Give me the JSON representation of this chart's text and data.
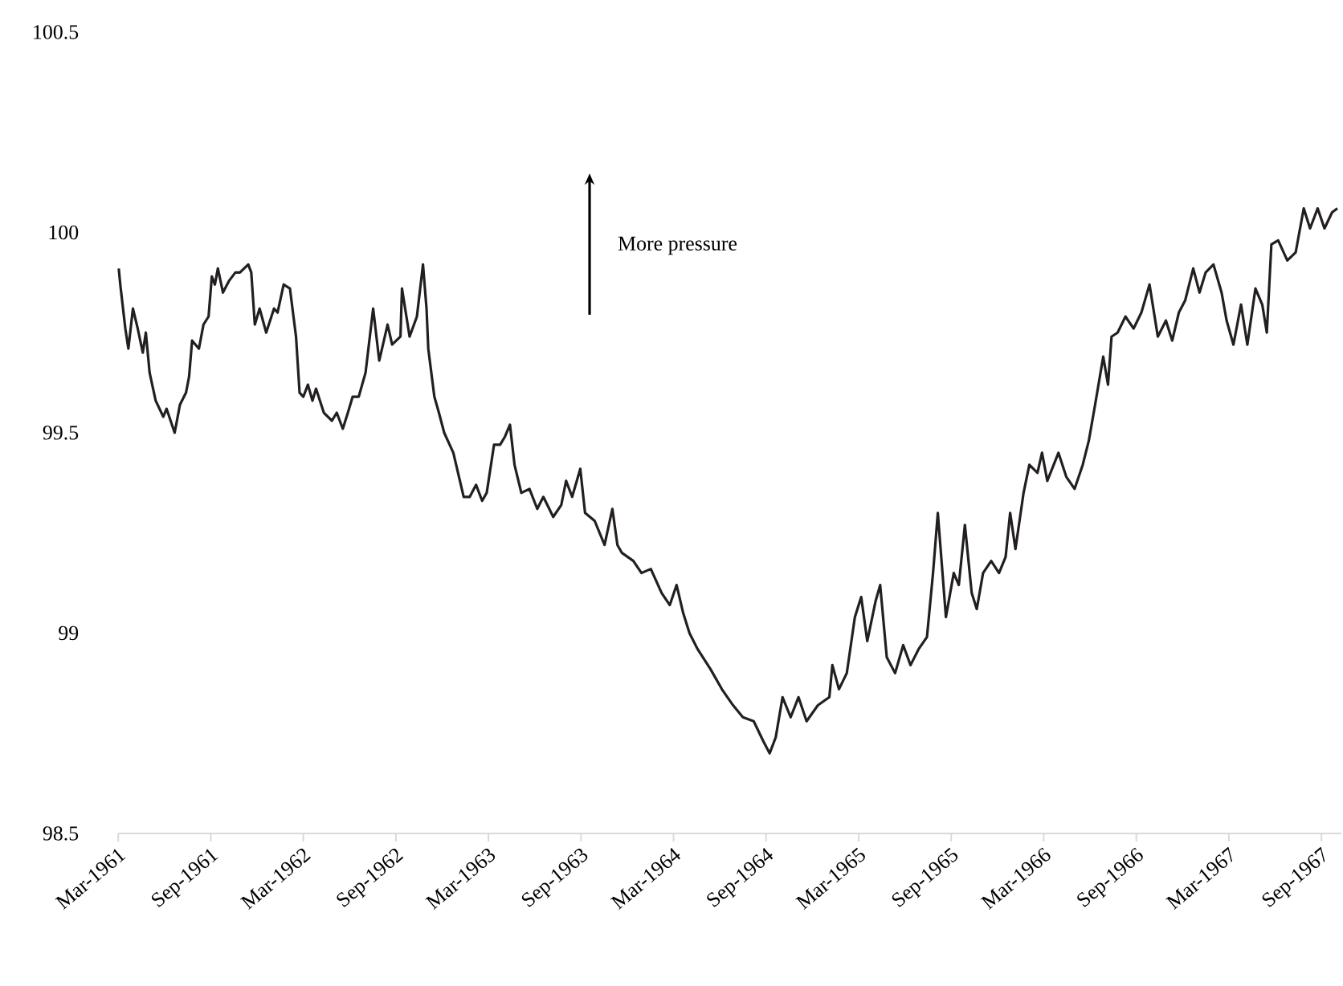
{
  "chart_data": {
    "type": "line",
    "x": [
      "1961-03-02",
      "1961-03-05",
      "1961-03-15",
      "1961-03-21",
      "1961-03-30",
      "1961-04-09",
      "1961-04-19",
      "1961-04-25",
      "1961-05-02",
      "1961-05-14",
      "1961-05-29",
      "1961-06-05",
      "1961-06-21",
      "1961-07-01",
      "1961-07-13",
      "1961-07-19",
      "1961-07-25",
      "1961-08-08",
      "1961-08-17",
      "1961-08-27",
      "1961-09-03",
      "1961-09-09",
      "1961-09-15",
      "1961-09-25",
      "1961-10-07",
      "1961-10-19",
      "1961-10-28",
      "1961-11-14",
      "1961-11-20",
      "1961-11-27",
      "1961-12-06",
      "1961-12-19",
      "1962-01-04",
      "1962-01-11",
      "1962-01-23",
      "1962-02-05",
      "1962-02-17",
      "1962-02-24",
      "1962-03-01",
      "1962-03-10",
      "1962-03-19",
      "1962-03-26",
      "1962-04-11",
      "1962-04-27",
      "1962-05-06",
      "1962-05-18",
      "1962-05-28",
      "1962-06-07",
      "1962-06-19",
      "1962-07-02",
      "1962-07-17",
      "1962-07-29",
      "1962-08-15",
      "1962-08-24",
      "1962-09-10",
      "1962-09-13",
      "1962-09-28",
      "1962-10-12",
      "1962-10-24",
      "1962-10-31",
      "1962-11-04",
      "1962-11-16",
      "1962-11-25",
      "1962-12-05",
      "1962-12-23",
      "1963-01-13",
      "1963-01-25",
      "1963-02-07",
      "1963-02-19",
      "1963-02-28",
      "1963-03-12",
      "1963-03-24",
      "1963-04-03",
      "1963-04-13",
      "1963-04-22",
      "1963-05-05",
      "1963-05-21",
      "1963-06-06",
      "1963-06-18",
      "1963-07-07",
      "1963-07-23",
      "1963-08-02",
      "1963-08-14",
      "1963-08-30",
      "1963-09-09",
      "1963-09-28",
      "1963-10-17",
      "1963-11-02",
      "1963-11-12",
      "1963-11-21",
      "1963-12-13",
      "1963-12-29",
      "1964-01-17",
      "1964-02-08",
      "1964-02-24",
      "1964-03-07",
      "1964-03-20",
      "1964-04-02",
      "1964-04-18",
      "1964-05-13",
      "1964-06-05",
      "1964-06-27",
      "1964-07-16",
      "1964-08-07",
      "1964-08-26",
      "1964-09-08",
      "1964-09-20",
      "1964-10-03",
      "1964-10-19",
      "1964-11-04",
      "1964-11-20",
      "1964-12-12",
      "1965-01-04",
      "1965-01-10",
      "1965-01-23",
      "1965-02-08",
      "1965-02-24",
      "1965-03-06",
      "1965-03-18",
      "1965-04-04",
      "1965-04-13",
      "1965-04-26",
      "1965-05-12",
      "1965-05-28",
      "1965-06-12",
      "1965-06-28",
      "1965-07-14",
      "1965-07-26",
      "1965-08-05",
      "1965-08-21",
      "1965-09-06",
      "1965-09-16",
      "1965-09-28",
      "1965-10-11",
      "1965-10-21",
      "1965-11-03",
      "1965-11-19",
      "1965-12-04",
      "1965-12-17",
      "1965-12-26",
      "1966-01-06",
      "1966-01-22",
      "1966-02-03",
      "1966-02-19",
      "1966-02-28",
      "1966-03-08",
      "1966-03-30",
      "1966-04-15",
      "1966-05-01",
      "1966-05-17",
      "1966-05-29",
      "1966-06-11",
      "1966-06-27",
      "1966-07-06",
      "1966-07-13",
      "1966-07-25",
      "1966-08-10",
      "1966-08-26",
      "1966-09-11",
      "1966-09-27",
      "1966-10-13",
      "1966-10-29",
      "1966-11-11",
      "1966-11-24",
      "1966-12-06",
      "1966-12-22",
      "1967-01-04",
      "1967-01-16",
      "1967-02-01",
      "1967-02-17",
      "1967-02-27",
      "1967-03-10",
      "1967-03-25",
      "1967-04-07",
      "1967-04-23",
      "1967-05-06",
      "1967-05-15",
      "1967-05-24",
      "1967-06-07",
      "1967-06-25",
      "1967-07-11",
      "1967-07-27",
      "1967-08-09",
      "1967-08-24",
      "1967-09-07",
      "1967-09-22",
      "1967-10-02"
    ],
    "values": [
      99.91,
      99.87,
      99.76,
      99.71,
      99.81,
      99.76,
      99.7,
      99.75,
      99.65,
      99.58,
      99.54,
      99.56,
      99.5,
      99.57,
      99.6,
      99.64,
      99.73,
      99.71,
      99.77,
      99.79,
      99.89,
      99.87,
      99.91,
      99.85,
      99.88,
      99.9,
      99.9,
      99.92,
      99.9,
      99.77,
      99.81,
      99.75,
      99.81,
      99.8,
      99.87,
      99.86,
      99.74,
      99.6,
      99.59,
      99.62,
      99.58,
      99.61,
      99.55,
      99.53,
      99.55,
      99.51,
      99.55,
      99.59,
      99.59,
      99.65,
      99.81,
      99.68,
      99.77,
      99.72,
      99.74,
      99.86,
      99.74,
      99.79,
      99.92,
      99.81,
      99.71,
      99.59,
      99.55,
      99.5,
      99.45,
      99.34,
      99.34,
      99.37,
      99.33,
      99.35,
      99.47,
      99.47,
      99.49,
      99.52,
      99.42,
      99.35,
      99.36,
      99.31,
      99.34,
      99.29,
      99.32,
      99.38,
      99.34,
      99.41,
      99.3,
      99.28,
      99.22,
      99.31,
      99.22,
      99.2,
      99.18,
      99.15,
      99.16,
      99.1,
      99.07,
      99.12,
      99.05,
      99.0,
      98.96,
      98.91,
      98.86,
      98.82,
      98.79,
      98.78,
      98.73,
      98.7,
      98.74,
      98.84,
      98.79,
      98.84,
      98.78,
      98.82,
      98.84,
      98.92,
      98.86,
      98.9,
      99.04,
      99.09,
      98.98,
      99.08,
      99.12,
      98.94,
      98.9,
      98.97,
      98.92,
      98.96,
      98.99,
      99.15,
      99.3,
      99.04,
      99.15,
      99.12,
      99.27,
      99.1,
      99.06,
      99.15,
      99.18,
      99.15,
      99.19,
      99.3,
      99.21,
      99.35,
      99.42,
      99.4,
      99.45,
      99.38,
      99.45,
      99.39,
      99.36,
      99.42,
      99.48,
      99.57,
      99.69,
      99.62,
      99.74,
      99.75,
      99.79,
      99.76,
      99.8,
      99.87,
      99.74,
      99.78,
      99.73,
      99.8,
      99.83,
      99.91,
      99.85,
      99.9,
      99.92,
      99.85,
      99.78,
      99.72,
      99.82,
      99.72,
      99.86,
      99.82,
      99.75,
      99.97,
      99.98,
      99.93,
      99.95,
      100.06,
      100.01,
      100.06,
      100.01,
      100.05,
      100.06
    ],
    "color": "#231f20",
    "xlim": [
      "1961-03-01",
      "1967-10-10"
    ],
    "xticks": [
      {
        "value": "1961-03-01",
        "label": "Mar-1961"
      },
      {
        "value": "1961-09-01",
        "label": "Sep-1961"
      },
      {
        "value": "1962-03-01",
        "label": "Mar-1962"
      },
      {
        "value": "1962-09-01",
        "label": "Sep-1962"
      },
      {
        "value": "1963-03-01",
        "label": "Mar-1963"
      },
      {
        "value": "1963-09-01",
        "label": "Sep-1963"
      },
      {
        "value": "1964-03-01",
        "label": "Mar-1964"
      },
      {
        "value": "1964-09-01",
        "label": "Sep-1964"
      },
      {
        "value": "1965-03-01",
        "label": "Mar-1965"
      },
      {
        "value": "1965-09-01",
        "label": "Sep-1965"
      },
      {
        "value": "1966-03-01",
        "label": "Mar-1966"
      },
      {
        "value": "1966-09-01",
        "label": "Sep-1966"
      },
      {
        "value": "1967-03-01",
        "label": "Mar-1967"
      },
      {
        "value": "1967-09-01",
        "label": "Sep-1967"
      }
    ],
    "ylim": [
      98.5,
      100.5
    ],
    "yticks": [
      98.5,
      99,
      99.5,
      100,
      100.5
    ],
    "annotations": [
      "More pressure"
    ]
  }
}
